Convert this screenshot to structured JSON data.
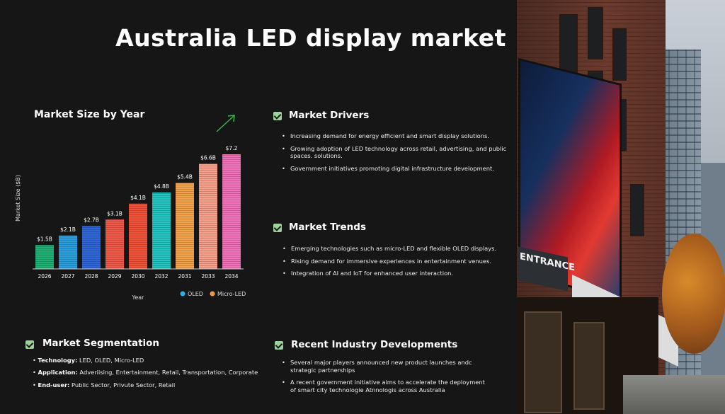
{
  "title": "Australia LED display market",
  "chart_title": "Market Size by Year",
  "chart_data": {
    "type": "bar",
    "title": "Market Size by Year",
    "xlabel": "Year",
    "ylabel": "Market Size ($B)",
    "categories": [
      "2026",
      "2027",
      "2028",
      "2029",
      "2030",
      "2032",
      "2031",
      "2033",
      "2034"
    ],
    "values": [
      1.5,
      2.1,
      2.7,
      3.1,
      4.1,
      4.8,
      5.4,
      6.6,
      7.2
    ],
    "data_labels": [
      "$1.5B",
      "$2.1B",
      "$2.7B",
      "$3.1B",
      "$4.1B",
      "$4.8B",
      "$5.4B",
      "$6.6B",
      "$7.2"
    ],
    "bar_colors": [
      "#1fb074",
      "#2a9fdc",
      "#2f66d6",
      "#ef5a48",
      "#f0533a",
      "#23c4c0",
      "#f2a24a",
      "#f6a08c",
      "#f072b8"
    ],
    "legend": [
      {
        "label": "OLED",
        "color": "#2ab1e8"
      },
      {
        "label": "Micro-LED",
        "color": "#f29a3a"
      }
    ],
    "ylim": [
      0,
      8
    ],
    "grid": false,
    "legend_position": "bottom-right"
  },
  "sections": {
    "drivers": {
      "heading": "Market Drivers",
      "items": [
        "Increasing demand for energy efficient and smart display solutions.",
        "Growing adoption of LED technology across retail, advertising, and public spaces. solutions.",
        "Government initiatives promoting digital infrastructure development."
      ]
    },
    "trends": {
      "heading": "Market Trends",
      "items": [
        "Emerging technologies such as micro-LED and flexible OLED displays.",
        "Rising demand for immersive experiences in entertainment venues.",
        "Integration of AI and IoT for enhanced user interaction."
      ]
    },
    "segmentation": {
      "heading": "Market Segmentation",
      "rows": [
        {
          "label": "Technology:",
          "value": "LED, OLED, Micro-LED"
        },
        {
          "label": "Application:",
          "value": "Adveriising, Entertainment, Retail, Transportation, Corporate"
        },
        {
          "label": "End-user:",
          "value": "Public Sector, Privute Sector, Retail"
        }
      ]
    },
    "developments": {
      "heading": "Recent Industry Developments",
      "items": [
        "Several major players announced new product launches andc strategic partnerships",
        "A recent government initiative aims to accelerate the deployment of smart city technologie Atnnologis across Australia"
      ]
    }
  },
  "photo": {
    "sign_text": "ENTRANCE"
  }
}
